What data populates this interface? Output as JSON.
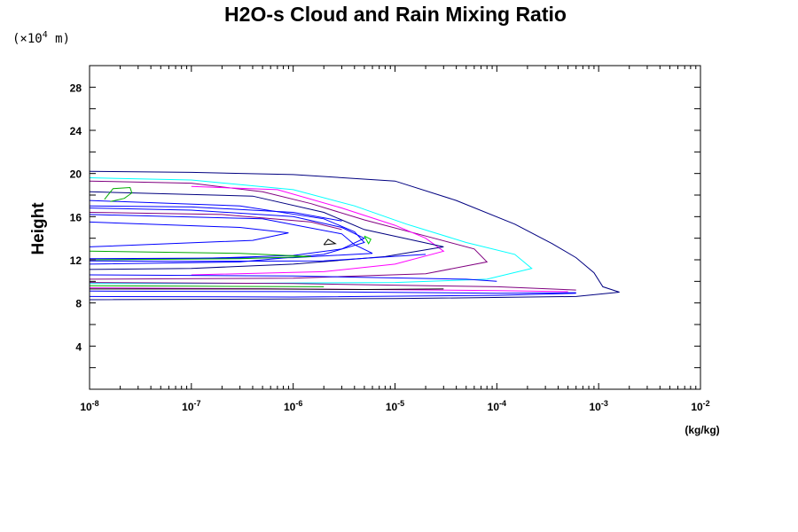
{
  "chart_data": {
    "type": "line",
    "title": "H2O-s Cloud and Rain Mixing Ratio",
    "ylabel": "Height",
    "xlabel": "(kg/kg)",
    "y_scale_note": {
      "prefix": "(×10",
      "exponent": "4",
      "suffix": " m)"
    },
    "xscale": "log",
    "xlim": [
      1e-08,
      0.01
    ],
    "ylim": [
      0,
      30
    ],
    "x_ticks": [
      {
        "base": "10",
        "exp": "-8",
        "value": 1e-08
      },
      {
        "base": "10",
        "exp": "-7",
        "value": 1e-07
      },
      {
        "base": "10",
        "exp": "-6",
        "value": 1e-06
      },
      {
        "base": "10",
        "exp": "-5",
        "value": 1e-05
      },
      {
        "base": "10",
        "exp": "-4",
        "value": 0.0001
      },
      {
        "base": "10",
        "exp": "-3",
        "value": 0.001
      },
      {
        "base": "10",
        "exp": "-2",
        "value": 0.01
      }
    ],
    "y_ticks": [
      "4",
      "8",
      "12",
      "16",
      "20",
      "24",
      "28"
    ],
    "grid": false,
    "series": [
      {
        "color": "#000080",
        "points": [
          [
            1e-08,
            20.2
          ],
          [
            1e-07,
            20.1
          ],
          [
            1e-06,
            19.9
          ],
          [
            1e-05,
            19.3
          ],
          [
            4e-05,
            17.5
          ],
          [
            0.00015,
            15.3
          ],
          [
            0.00035,
            13.5
          ],
          [
            0.0006,
            12.2
          ],
          [
            0.0009,
            10.8
          ],
          [
            0.0011,
            9.5
          ],
          [
            0.0016,
            9.0
          ],
          [
            0.0006,
            8.6
          ],
          [
            1e-05,
            8.4
          ],
          [
            1e-08,
            8.3
          ]
        ]
      },
      {
        "color": "#00ffff",
        "points": [
          [
            1e-08,
            19.6
          ],
          [
            1e-07,
            19.4
          ],
          [
            1e-06,
            18.5
          ],
          [
            4e-06,
            17.0
          ],
          [
            1.3e-05,
            15.3
          ],
          [
            5e-05,
            13.6
          ],
          [
            0.00015,
            12.5
          ],
          [
            0.00022,
            11.2
          ],
          [
            8e-05,
            10.2
          ],
          [
            1e-05,
            9.9
          ],
          [
            1e-07,
            9.8
          ],
          [
            1e-08,
            9.8
          ]
        ]
      },
      {
        "color": "#800080",
        "points": [
          [
            1e-08,
            19.3
          ],
          [
            1e-07,
            19.1
          ],
          [
            5e-07,
            18.3
          ],
          [
            1.5e-06,
            17.2
          ],
          [
            5e-06,
            15.7
          ],
          [
            2e-05,
            14.2
          ],
          [
            6e-05,
            13.0
          ],
          [
            8e-05,
            11.8
          ],
          [
            2e-05,
            10.7
          ],
          [
            1e-06,
            10.3
          ],
          [
            1e-08,
            10.2
          ]
        ]
      },
      {
        "color": "#ff00ff",
        "points": [
          [
            1e-07,
            18.8
          ],
          [
            7e-07,
            18.5
          ],
          [
            3e-06,
            16.8
          ],
          [
            1e-05,
            15.2
          ],
          [
            2e-05,
            14.0
          ],
          [
            3e-05,
            12.8
          ],
          [
            1e-05,
            11.6
          ],
          [
            2e-06,
            10.9
          ],
          [
            1e-07,
            10.6
          ]
        ]
      },
      {
        "color": "#0000ff",
        "points": [
          [
            1e-08,
            16.8
          ],
          [
            1e-07,
            16.6
          ],
          [
            1e-06,
            16.0
          ],
          [
            3e-06,
            15.0
          ],
          [
            5e-06,
            14.0
          ],
          [
            3e-06,
            13.0
          ],
          [
            1e-06,
            12.4
          ],
          [
            1e-07,
            12.1
          ],
          [
            1e-08,
            12.0
          ]
        ]
      },
      {
        "color": "#0000ff",
        "points": [
          [
            1e-08,
            15.5
          ],
          [
            3e-07,
            15.0
          ],
          [
            9e-07,
            14.5
          ],
          [
            4e-07,
            13.8
          ],
          [
            1e-08,
            13.2
          ]
        ]
      },
      {
        "color": "#0000ff",
        "points": [
          [
            1e-08,
            17.5
          ],
          [
            3e-07,
            17.0
          ],
          [
            2e-06,
            15.8
          ],
          [
            4e-06,
            14.6
          ],
          [
            5e-06,
            13.6
          ],
          [
            2e-06,
            12.5
          ],
          [
            3e-07,
            11.8
          ],
          [
            1e-08,
            11.6
          ]
        ]
      },
      {
        "color": "#000080",
        "points": [
          [
            1e-08,
            18.3
          ],
          [
            4e-07,
            17.9
          ],
          [
            2e-06,
            16.4
          ],
          [
            5e-06,
            14.8
          ],
          [
            3e-05,
            13.2
          ],
          [
            8e-06,
            12.3
          ],
          [
            1e-06,
            11.6
          ],
          [
            1e-07,
            11.2
          ],
          [
            1e-08,
            11.1
          ]
        ]
      },
      {
        "color": "#0000ff",
        "points": [
          [
            1e-08,
            16.2
          ],
          [
            5e-07,
            15.8
          ],
          [
            3e-06,
            14.4
          ],
          [
            4e-06,
            13.4
          ],
          [
            6e-06,
            12.6
          ],
          [
            1e-06,
            12.2
          ],
          [
            1e-08,
            12.1
          ]
        ]
      },
      {
        "color": "#00aa00",
        "points": [
          [
            1.4e-08,
            17.6
          ],
          [
            1.7e-08,
            18.6
          ],
          [
            2.5e-08,
            18.7
          ],
          [
            2.6e-08,
            18.2
          ],
          [
            2.2e-08,
            17.7
          ],
          [
            1.6e-08,
            17.4
          ]
        ]
      },
      {
        "color": "#00cc00",
        "points": [
          [
            5e-06,
            14.2
          ],
          [
            5.5e-06,
            13.5
          ],
          [
            5.8e-06,
            13.9
          ],
          [
            5e-06,
            14.2
          ]
        ]
      },
      {
        "color": "#000000",
        "points": [
          [
            2e-06,
            13.4
          ],
          [
            2.2e-06,
            13.9
          ],
          [
            2.6e-06,
            13.5
          ],
          [
            2e-06,
            13.4
          ]
        ]
      },
      {
        "color": "#00aa00",
        "points": [
          [
            1e-08,
            12.8
          ],
          [
            3e-07,
            12.6
          ],
          [
            1.5e-06,
            12.3
          ],
          [
            3e-07,
            12.1
          ],
          [
            1e-08,
            12.0
          ]
        ]
      },
      {
        "color": "#0000ff",
        "points": [
          [
            1e-08,
            10.6
          ],
          [
            1e-06,
            10.5
          ],
          [
            5e-05,
            10.2
          ],
          [
            0.0001,
            10.0
          ]
        ]
      },
      {
        "color": "#800080",
        "points": [
          [
            1e-08,
            9.9
          ],
          [
            1e-06,
            9.8
          ],
          [
            0.0001,
            9.5
          ],
          [
            0.0006,
            9.2
          ]
        ]
      },
      {
        "color": "#ff00ff",
        "points": [
          [
            1e-08,
            9.4
          ],
          [
            1e-06,
            9.3
          ],
          [
            0.0001,
            9.15
          ],
          [
            0.0005,
            9.05
          ]
        ]
      },
      {
        "color": "#0000ff",
        "points": [
          [
            1e-08,
            9.1
          ],
          [
            1e-06,
            9.05
          ],
          [
            0.0001,
            8.9
          ],
          [
            0.0006,
            8.95
          ]
        ]
      },
      {
        "color": "#000000",
        "points": [
          [
            1e-08,
            9.3
          ],
          [
            5e-07,
            9.3
          ],
          [
            5e-06,
            9.25
          ],
          [
            3e-05,
            9.3
          ]
        ]
      },
      {
        "color": "#00aa00",
        "points": [
          [
            1e-08,
            9.6
          ],
          [
            1e-07,
            9.55
          ],
          [
            2e-06,
            9.5
          ]
        ]
      },
      {
        "color": "#0000ff",
        "points": [
          [
            1e-08,
            8.6
          ],
          [
            1e-06,
            8.55
          ],
          [
            0.0001,
            8.7
          ],
          [
            0.0006,
            8.9
          ]
        ]
      },
      {
        "color": "#0000ff",
        "points": [
          [
            1e-08,
            17.0
          ],
          [
            1e-07,
            16.9
          ],
          [
            1e-06,
            16.4
          ],
          [
            3e-06,
            15.6
          ]
        ]
      },
      {
        "color": "#800080",
        "points": [
          [
            1e-08,
            16.4
          ],
          [
            2e-07,
            16.2
          ],
          [
            1.5e-06,
            15.5
          ],
          [
            3e-06,
            14.8
          ]
        ]
      },
      {
        "color": "#0000ff",
        "points": [
          [
            1e-08,
            11.9
          ],
          [
            1e-07,
            11.85
          ],
          [
            2e-06,
            11.9
          ],
          [
            2e-05,
            12.5
          ]
        ]
      }
    ]
  }
}
